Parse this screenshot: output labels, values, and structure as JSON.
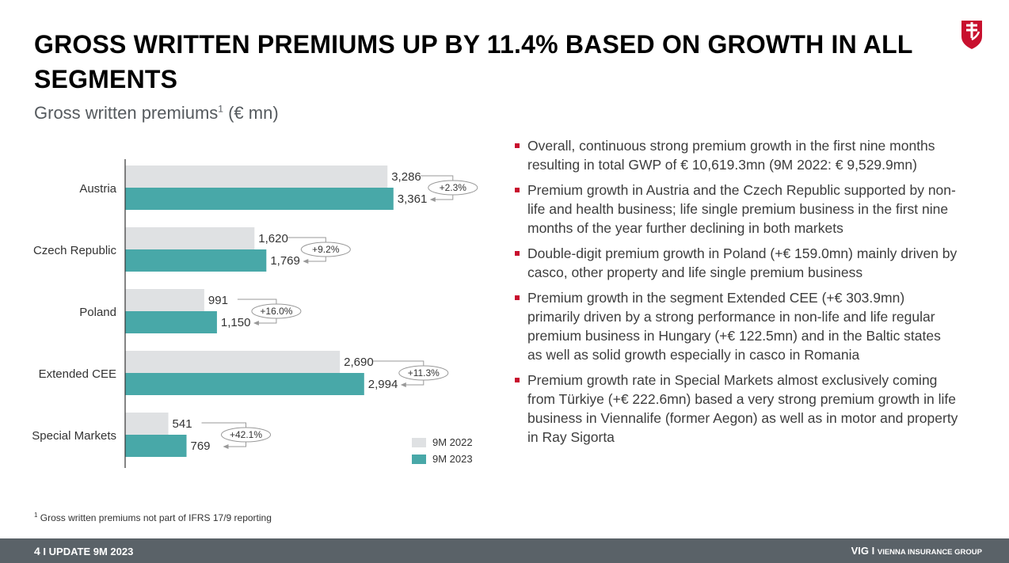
{
  "title": "GROSS WRITTEN PREMIUMS UP BY 11.4% BASED ON GROWTH IN ALL SEGMENTS",
  "subtitle": {
    "text": "Gross written premiums",
    "sup": "1",
    "unit": " (€ mn)"
  },
  "chart_data": {
    "type": "bar",
    "orientation": "horizontal",
    "categories": [
      "Austria",
      "Czech Republic",
      "Poland",
      "Extended CEE",
      "Special Markets"
    ],
    "series": [
      {
        "name": "9M 2022",
        "values": [
          3286,
          1620,
          991,
          2690,
          541
        ],
        "labels": [
          "3,286",
          "1,620",
          "991",
          "2,690",
          "541"
        ],
        "color": "#dfe1e3"
      },
      {
        "name": "9M 2023",
        "values": [
          3361,
          1769,
          1150,
          2994,
          769
        ],
        "labels": [
          "3,361",
          "1,769",
          "1,150",
          "2,994",
          "769"
        ],
        "color": "#48a8a8"
      }
    ],
    "growth": [
      "+2.3%",
      "+9.2%",
      "+16.0%",
      "+11.3%",
      "+42.1%"
    ],
    "title": "",
    "xlabel": "",
    "ylabel": ""
  },
  "bullets": [
    "Overall, continuous strong premium growth in the first nine months resulting in total GWP of € 10,619.3mn (9M 2022: € 9,529.9mn)",
    "Premium growth in Austria and the Czech Republic supported by non-life and health business; life single premium business in the first nine months of the year further declining in both markets",
    "Double-digit premium growth in Poland (+€ 159.0mn) mainly driven by casco, other property and life single premium business",
    "Premium growth in the segment Extended CEE (+€ 303.9mn) primarily driven by a strong performance in non-life and life regular premium business in Hungary (+€ 122.5mn) and in the Baltic states as well as solid growth especially in casco in Romania",
    "Premium growth rate in Special Markets almost exclusively coming from Türkiye (+€ 222.6mn) based a very strong premium growth in life business in Viennalife (former Aegon) as well as in motor and property in Ray Sigorta"
  ],
  "footnote": {
    "sup": "1",
    "text": " Gross written premiums not part of IFRS 17/9 reporting"
  },
  "footer": {
    "page": "4",
    "label": "UPDATE 9M 2023",
    "brand": "VIG",
    "brand_full": "VIENNA INSURANCE GROUP"
  },
  "colors": {
    "accent": "#c8102e",
    "bar_2022": "#dfe1e3",
    "bar_2023": "#48a8a8",
    "footer_bg": "#5a6268"
  }
}
